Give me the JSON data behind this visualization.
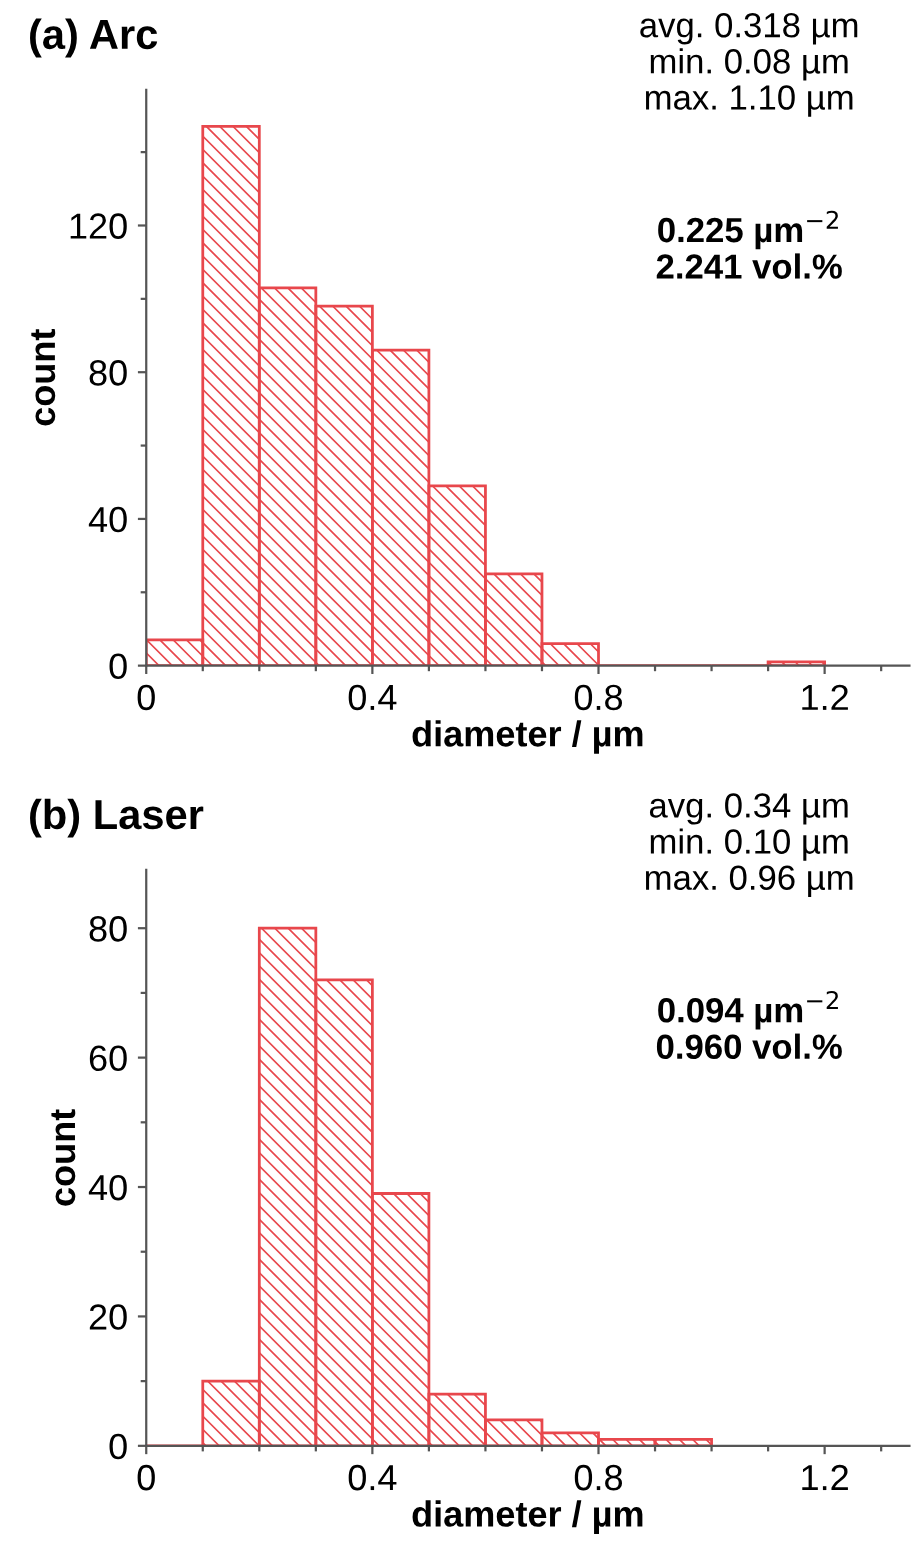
{
  "chart_data": [
    {
      "type": "histogram",
      "title": "(a) Arc",
      "xlabel": "diameter / µm",
      "ylabel": "count",
      "bins": [
        0,
        0.1,
        0.2,
        0.3,
        0.4,
        0.5,
        0.6,
        0.7,
        0.8,
        0.9,
        1.0,
        1.1,
        1.2
      ],
      "values": [
        7,
        147,
        103,
        98,
        86,
        49,
        25,
        6,
        0,
        0,
        0,
        1
      ],
      "color": "#e8474c",
      "xlim": [
        0,
        1.35
      ],
      "ylim": [
        0,
        157
      ],
      "xticks": [
        0,
        {
          "value": 0.1,
          "label": null
        },
        {
          "value": 0.2,
          "label": null
        },
        {
          "value": 0.3,
          "label": null
        },
        0.4,
        {
          "value": 0.5,
          "label": null
        },
        {
          "value": 0.6,
          "label": null
        },
        {
          "value": 0.7,
          "label": null
        },
        0.8,
        {
          "value": 0.9,
          "label": null
        },
        {
          "value": 1.0,
          "label": null
        },
        {
          "value": 1.1,
          "label": null
        },
        1.2,
        {
          "value": 1.3,
          "label": null
        }
      ],
      "yticks": [
        0,
        {
          "value": 20,
          "label": null
        },
        40,
        {
          "value": 60,
          "label": null
        },
        80,
        {
          "value": 100,
          "label": null
        },
        120,
        {
          "value": 140,
          "label": null
        }
      ],
      "grid": false,
      "legend": false,
      "annotations": [
        "avg. 0.318 µm\nmin. 0.08 µm\nmax. 1.10 µm",
        "0.225 µm$^{−2}$\n2.241 vol.%"
      ]
    },
    {
      "type": "histogram",
      "title": "(b) Laser",
      "xlabel": "diameter / µm",
      "ylabel": "count",
      "bins": [
        0,
        0.1,
        0.2,
        0.3,
        0.4,
        0.5,
        0.6,
        0.7,
        0.8,
        0.9,
        1.0
      ],
      "values": [
        0,
        10,
        80,
        72,
        39,
        8,
        4,
        2,
        1,
        1
      ],
      "color": "#e8474c",
      "xlim": [
        0,
        1.35
      ],
      "ylim": [
        0,
        89
      ],
      "xticks": [
        0,
        {
          "value": 0.1,
          "label": null
        },
        {
          "value": 0.2,
          "label": null
        },
        {
          "value": 0.3,
          "label": null
        },
        0.4,
        {
          "value": 0.5,
          "label": null
        },
        {
          "value": 0.6,
          "label": null
        },
        {
          "value": 0.7,
          "label": null
        },
        0.8,
        {
          "value": 0.9,
          "label": null
        },
        {
          "value": 1.0,
          "label": null
        },
        {
          "value": 1.1,
          "label": null
        },
        1.2,
        {
          "value": 1.3,
          "label": null
        }
      ],
      "yticks": [
        0,
        {
          "value": 10,
          "label": null
        },
        20,
        {
          "value": 30,
          "label": null
        },
        40,
        {
          "value": 50,
          "label": null
        },
        60,
        {
          "value": 70,
          "label": null
        },
        80
      ],
      "grid": false,
      "legend": false,
      "annotations": [
        "avg. 0.34 µm\nmin. 0.10 µm\nmax. 0.96 µm",
        "0.094 µm$^{−2}$\n0.960 vol.%"
      ]
    }
  ]
}
